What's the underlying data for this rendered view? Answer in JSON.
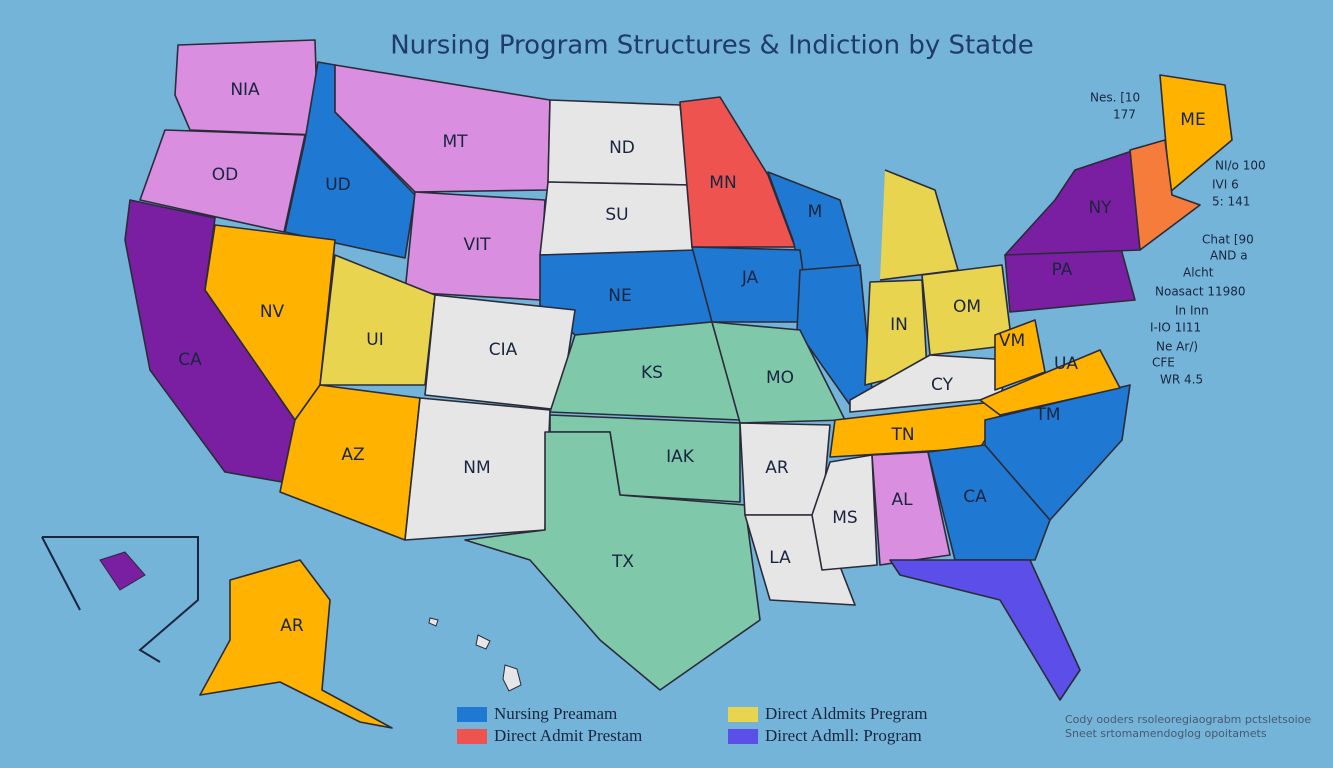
{
  "title": "Nursing Program Structures & Indiction by Statde",
  "states": [
    {
      "label": "NIA",
      "color": "#d98ee0"
    },
    {
      "label": "OD",
      "color": "#d98ee0"
    },
    {
      "label": "UD",
      "color": "#1f78d1"
    },
    {
      "label": "MT",
      "color": "#d98ee0"
    },
    {
      "label": "VIT",
      "color": "#d98ee0"
    },
    {
      "label": "ND",
      "color": "#e6e6e6"
    },
    {
      "label": "SU",
      "color": "#e6e6e6"
    },
    {
      "label": "NE",
      "color": "#1f78d1"
    },
    {
      "label": "MN",
      "color": "#ef5350"
    },
    {
      "label": "M",
      "color": "#1f78d1"
    },
    {
      "label": "JA",
      "color": "#1f78d1"
    },
    {
      "color": "#1f78d1"
    },
    {
      "color": "#e8d44f"
    },
    {
      "label": "IN",
      "color": "#e8d44f"
    },
    {
      "label": "OM",
      "color": "#e8d44f"
    },
    {
      "label": "CA",
      "color": "#7b1fa2"
    },
    {
      "label": "NV",
      "color": "#ffb300"
    },
    {
      "label": "UI",
      "color": "#e8d44f"
    },
    {
      "label": "CIA",
      "color": "#e6e6e6"
    },
    {
      "label": "KS",
      "color": "#80c8aa"
    },
    {
      "label": "AZ",
      "color": "#ffb300"
    },
    {
      "label": "NM",
      "color": "#e6e6e6"
    },
    {
      "label": "IAK",
      "color": "#80c8aa"
    },
    {
      "label": "TX",
      "color": "#80c8aa"
    },
    {
      "label": "MO",
      "color": "#80c8aa"
    },
    {
      "label": "AR",
      "color": "#e6e6e6"
    },
    {
      "label": "LA",
      "color": "#e6e6e6"
    },
    {
      "label": "MS",
      "color": "#e6e6e6"
    },
    {
      "label": "AL",
      "color": "#d98ee0"
    },
    {
      "label": "CY",
      "color": "#e6e6e6"
    },
    {
      "label": "TN",
      "color": "#ffb300"
    },
    {
      "label": "CA",
      "color": "#1f78d1"
    },
    {
      "label": "TM",
      "color": "#1f78d1"
    },
    {
      "color": "#5c4ee8"
    },
    {
      "label": "UA",
      "color": "#ffb300"
    },
    {
      "label": "VM",
      "color": "#ffb300"
    },
    {
      "label": "PA",
      "color": "#7b1fa2"
    },
    {
      "label": "NY",
      "color": "#7b1fa2"
    },
    {
      "label": "ME",
      "color": "#ffb300"
    },
    {
      "color": "#f57c3a"
    },
    {
      "label": "AR",
      "color": "#ffb300"
    }
  ],
  "annotations": [
    "Nes. [10",
    "177",
    "NI/o 100",
    "IVI 6",
    "5: 141",
    "Chat [90",
    "AND a",
    "Alcht",
    "Noasact 11980",
    "In Inn",
    "I-IO 1I11",
    "Ne Ar/)",
    "CFE",
    "WR 4.5"
  ],
  "legend": [
    {
      "label": "Nursing Preamam",
      "color": "#1f78d1"
    },
    {
      "label": "Direct Admit Prestam",
      "color": "#ef5350"
    },
    {
      "label": "Direct Aldmits Pregram",
      "color": "#e8d44f"
    },
    {
      "label": "Direct Admll: Program",
      "color": "#5c4ee8"
    }
  ],
  "footnote": [
    "Cody ooders rsoleoregiaograbm pctsletsoioe",
    "Sneet srtomamendoglog opoitamets"
  ]
}
